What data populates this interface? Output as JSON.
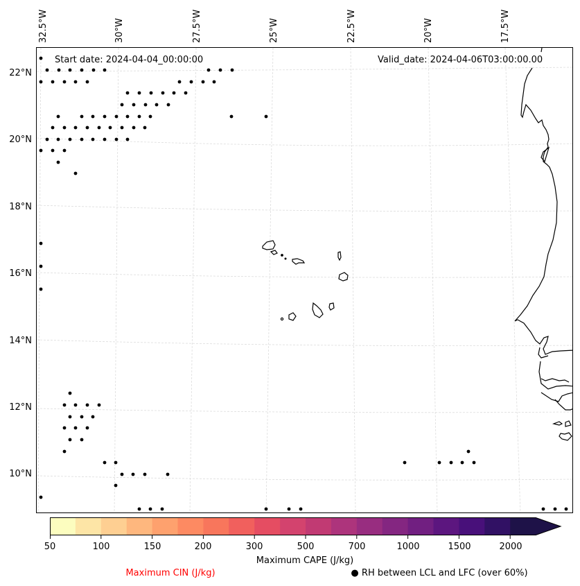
{
  "map": {
    "type": "weather-map",
    "projection_note": "Lambert-like, gridlines slightly curved",
    "longitude_labels": [
      "32.5°W",
      "30°W",
      "27.5°W",
      "25°W",
      "22.5°W",
      "20°W",
      "17.5°W"
    ],
    "latitude_labels": [
      "22°N",
      "20°N",
      "18°N",
      "16°N",
      "14°N",
      "12°N",
      "10°N"
    ],
    "start_date_text": "Start date: 2024-04-04_00:00:00",
    "valid_date_text": "Valid_date: 2024-04-06T03:00:00.00",
    "features": {
      "coastline": "West African coast (Mauritania, Senegal, Gambia, Guinea-Bissau)",
      "islands": "Cape Verde islands"
    },
    "rh_marker_color": "#000000",
    "gridline_color": "#d9d9d9"
  },
  "colorbar": {
    "label": "Maximum CAPE (J/kg)",
    "levels": [
      50,
      75,
      100,
      125,
      150,
      175,
      200,
      250,
      300,
      400,
      500,
      600,
      700,
      850,
      1000,
      1250,
      1500,
      1750,
      2000
    ],
    "tick_labels": [
      "50",
      "100",
      "150",
      "200",
      "300",
      "500",
      "700",
      "1000",
      "1500",
      "2000"
    ],
    "tick_level_index": [
      0,
      2,
      4,
      6,
      8,
      10,
      12,
      14,
      16,
      18
    ],
    "colors": [
      "#fcfdbf",
      "#fde5a6",
      "#fecf92",
      "#feb77e",
      "#fea16e",
      "#fd8a62",
      "#f8765c",
      "#f1605d",
      "#e54d62",
      "#d3436e",
      "#c13a73",
      "#ad347c",
      "#982d80",
      "#842681",
      "#711f81",
      "#5c167f",
      "#48107a",
      "#311164",
      "#1e1248"
    ],
    "extend": "max",
    "extend_color": "#1e1248"
  },
  "legend": {
    "cin_label": "Maximum CIN (J/kg)",
    "cin_color": "#ff0000",
    "rh_marker": "●",
    "rh_label": "RH between LCL and LFC (over 60%)"
  }
}
